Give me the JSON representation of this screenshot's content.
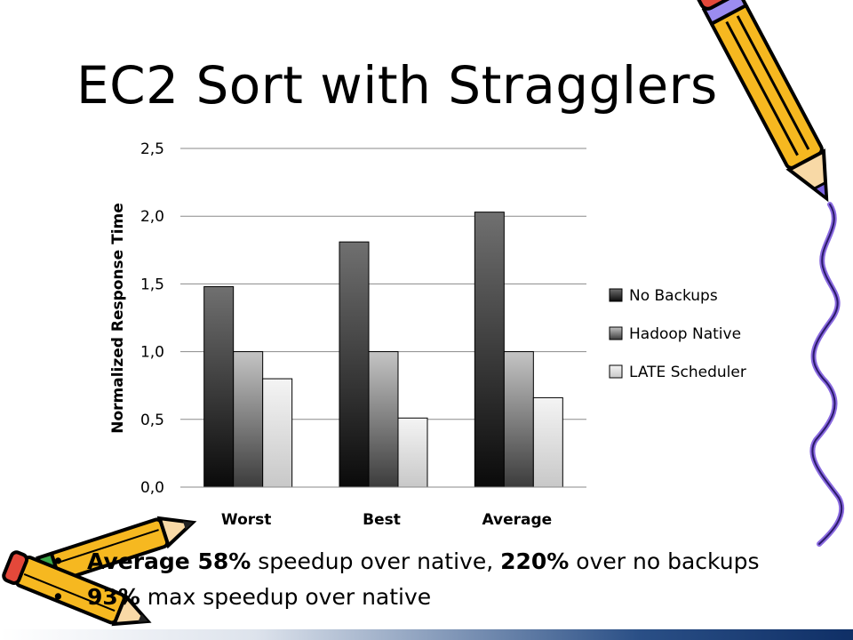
{
  "slide": {
    "title": "EC2 Sort with Stragglers",
    "bullets": [
      {
        "bold_a": "Average 58%",
        "text_a": " speedup over native, ",
        "bold_b": "220%",
        "text_b": " over no backups"
      },
      {
        "bold_a": "93%",
        "text_a": " max speedup over native",
        "bold_b": "",
        "text_b": ""
      }
    ]
  },
  "decor": {
    "pencil_right": "pencil-icon",
    "pencil_left": "pencil-icon",
    "squiggle": "squiggle-line"
  },
  "chart_data": {
    "type": "bar",
    "title": "",
    "ylabel": "Normalized Response Time",
    "xlabel": "",
    "categories": [
      "Worst",
      "Best",
      "Average"
    ],
    "series": [
      {
        "name": "No Backups",
        "values": [
          1.48,
          1.81,
          2.03
        ]
      },
      {
        "name": "Hadoop Native",
        "values": [
          1.0,
          1.0,
          1.0
        ]
      },
      {
        "name": "LATE Scheduler",
        "values": [
          0.8,
          0.51,
          0.66
        ]
      }
    ],
    "ylim": [
      0,
      2.5
    ],
    "yticks": [
      "0,0",
      "0,5",
      "1,0",
      "1,5",
      "2,0",
      "2,5"
    ],
    "grid": true,
    "legend": "right",
    "colors": [
      "#3a3a3a",
      "#8c8c8c",
      "#d4d4d4"
    ]
  }
}
